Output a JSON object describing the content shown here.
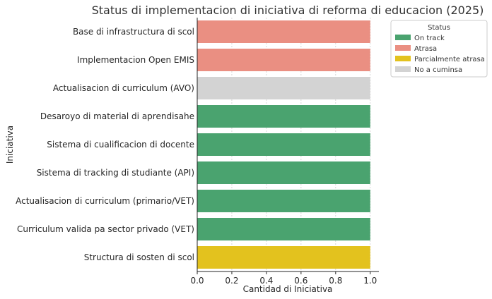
{
  "chart_data": {
    "type": "bar",
    "orientation": "horizontal",
    "title": "Status di implementacion di iniciativa di reforma di educacion (2025)",
    "xlabel": "Cantidad di Iniciativa",
    "ylabel": "Iniciativa",
    "xlim": [
      0,
      1.05
    ],
    "xticks": [
      "0.0",
      "0.2",
      "0.4",
      "0.6",
      "0.8",
      "1.0"
    ],
    "xtick_values": [
      0,
      0.2,
      0.4,
      0.6,
      0.8,
      1.0
    ],
    "grid": "vertical-dashed",
    "legend_placement": "top-right-outside",
    "legend": {
      "title": "Status",
      "entries": [
        {
          "label": "On track",
          "color": "#4aa36f"
        },
        {
          "label": "Atrasa",
          "color": "#ea8f82"
        },
        {
          "label": "Parcialmente atrasa",
          "color": "#e3c21e"
        },
        {
          "label": "No a cuminsa",
          "color": "#d3d3d3"
        }
      ]
    },
    "bars": [
      {
        "category": "Base di infrastructura di scol",
        "value": 1.0,
        "status": "Atrasa",
        "color": "#ea8f82"
      },
      {
        "category": "Implementacion Open EMIS",
        "value": 1.0,
        "status": "Atrasa",
        "color": "#ea8f82"
      },
      {
        "category": "Actualisacion di curriculum (AVO)",
        "value": 1.0,
        "status": "No a cuminsa",
        "color": "#d3d3d3"
      },
      {
        "category": "Desaroyo di material di aprendisahe",
        "value": 1.0,
        "status": "On track",
        "color": "#4aa36f"
      },
      {
        "category": "Sistema di cualificacion di docente",
        "value": 1.0,
        "status": "On track",
        "color": "#4aa36f"
      },
      {
        "category": "Sistema di tracking di studiante (API)",
        "value": 1.0,
        "status": "On track",
        "color": "#4aa36f"
      },
      {
        "category": "Actualisacion di curriculum (primario/VET)",
        "value": 1.0,
        "status": "On track",
        "color": "#4aa36f"
      },
      {
        "category": "Curriculum valida pa sector privado (VET)",
        "value": 1.0,
        "status": "On track",
        "color": "#4aa36f"
      },
      {
        "category": "Structura di sosten di scol",
        "value": 1.0,
        "status": "Parcialmente atrasa",
        "color": "#e3c21e"
      }
    ]
  }
}
